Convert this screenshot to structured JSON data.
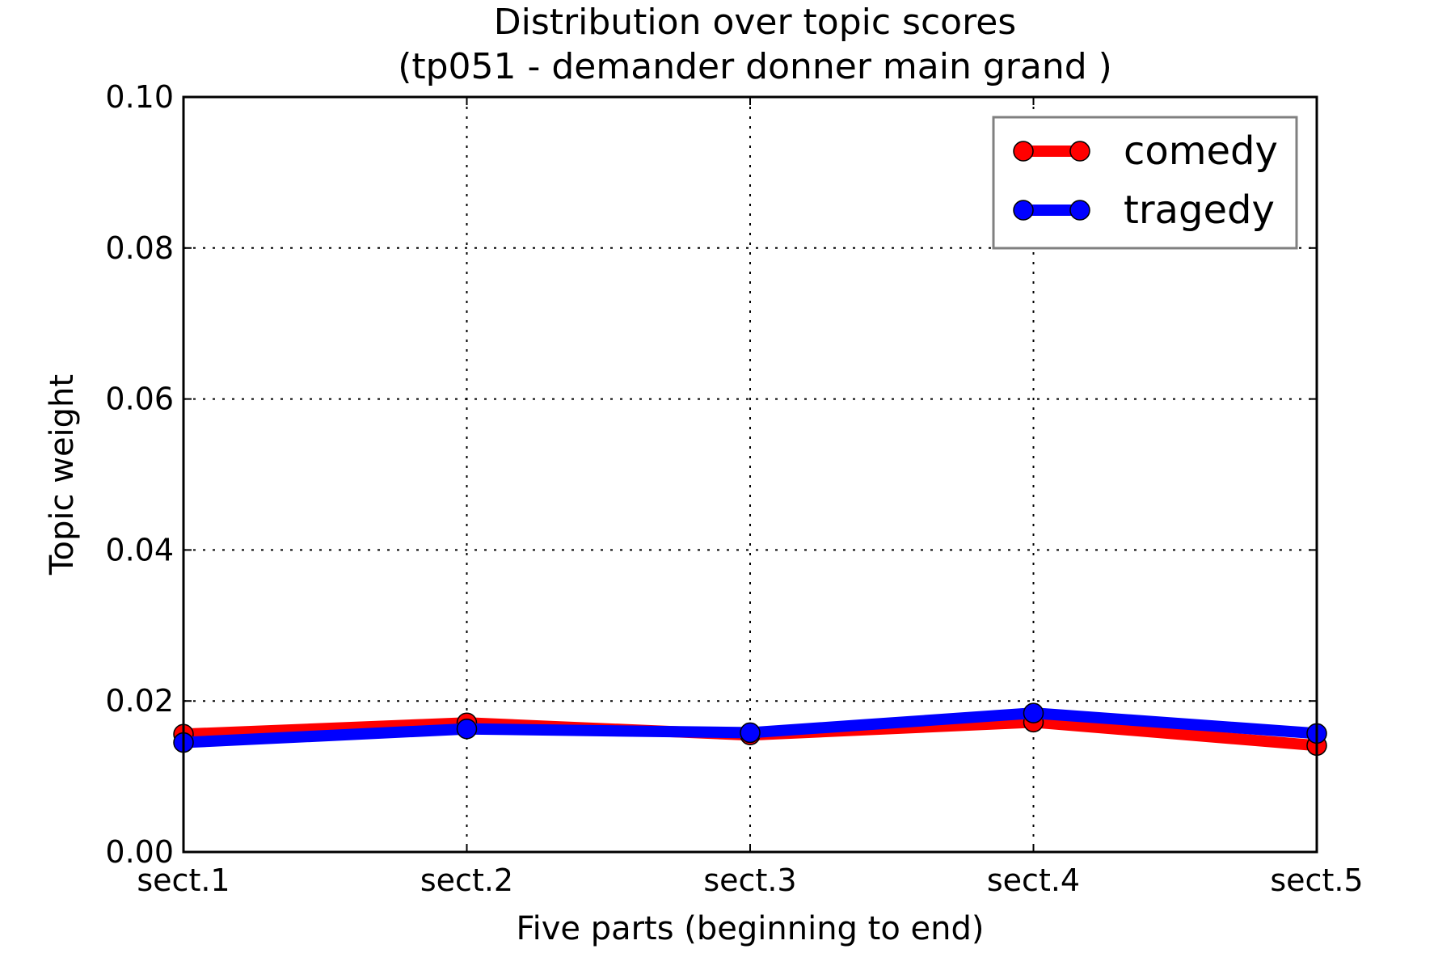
{
  "chart_data": {
    "type": "line",
    "title": "Distribution over topic scores",
    "subtitle": "(tp051 - demander donner main grand )",
    "xlabel": "Five parts (beginning to end)",
    "ylabel": "Topic weight",
    "categories": [
      "sect.1",
      "sect.2",
      "sect.3",
      "sect.4",
      "sect.5"
    ],
    "ylim": [
      0,
      0.1
    ],
    "yticks": [
      "0.00",
      "0.02",
      "0.04",
      "0.06",
      "0.08",
      "0.10"
    ],
    "grid": true,
    "legend_position": "top-right",
    "series": [
      {
        "name": "comedy",
        "color": "#ff0000",
        "values": [
          0.0156,
          0.0171,
          0.0155,
          0.0172,
          0.0141
        ]
      },
      {
        "name": "tragedy",
        "color": "#0000ff",
        "values": [
          0.0145,
          0.0163,
          0.0158,
          0.0184,
          0.0157
        ]
      }
    ]
  }
}
